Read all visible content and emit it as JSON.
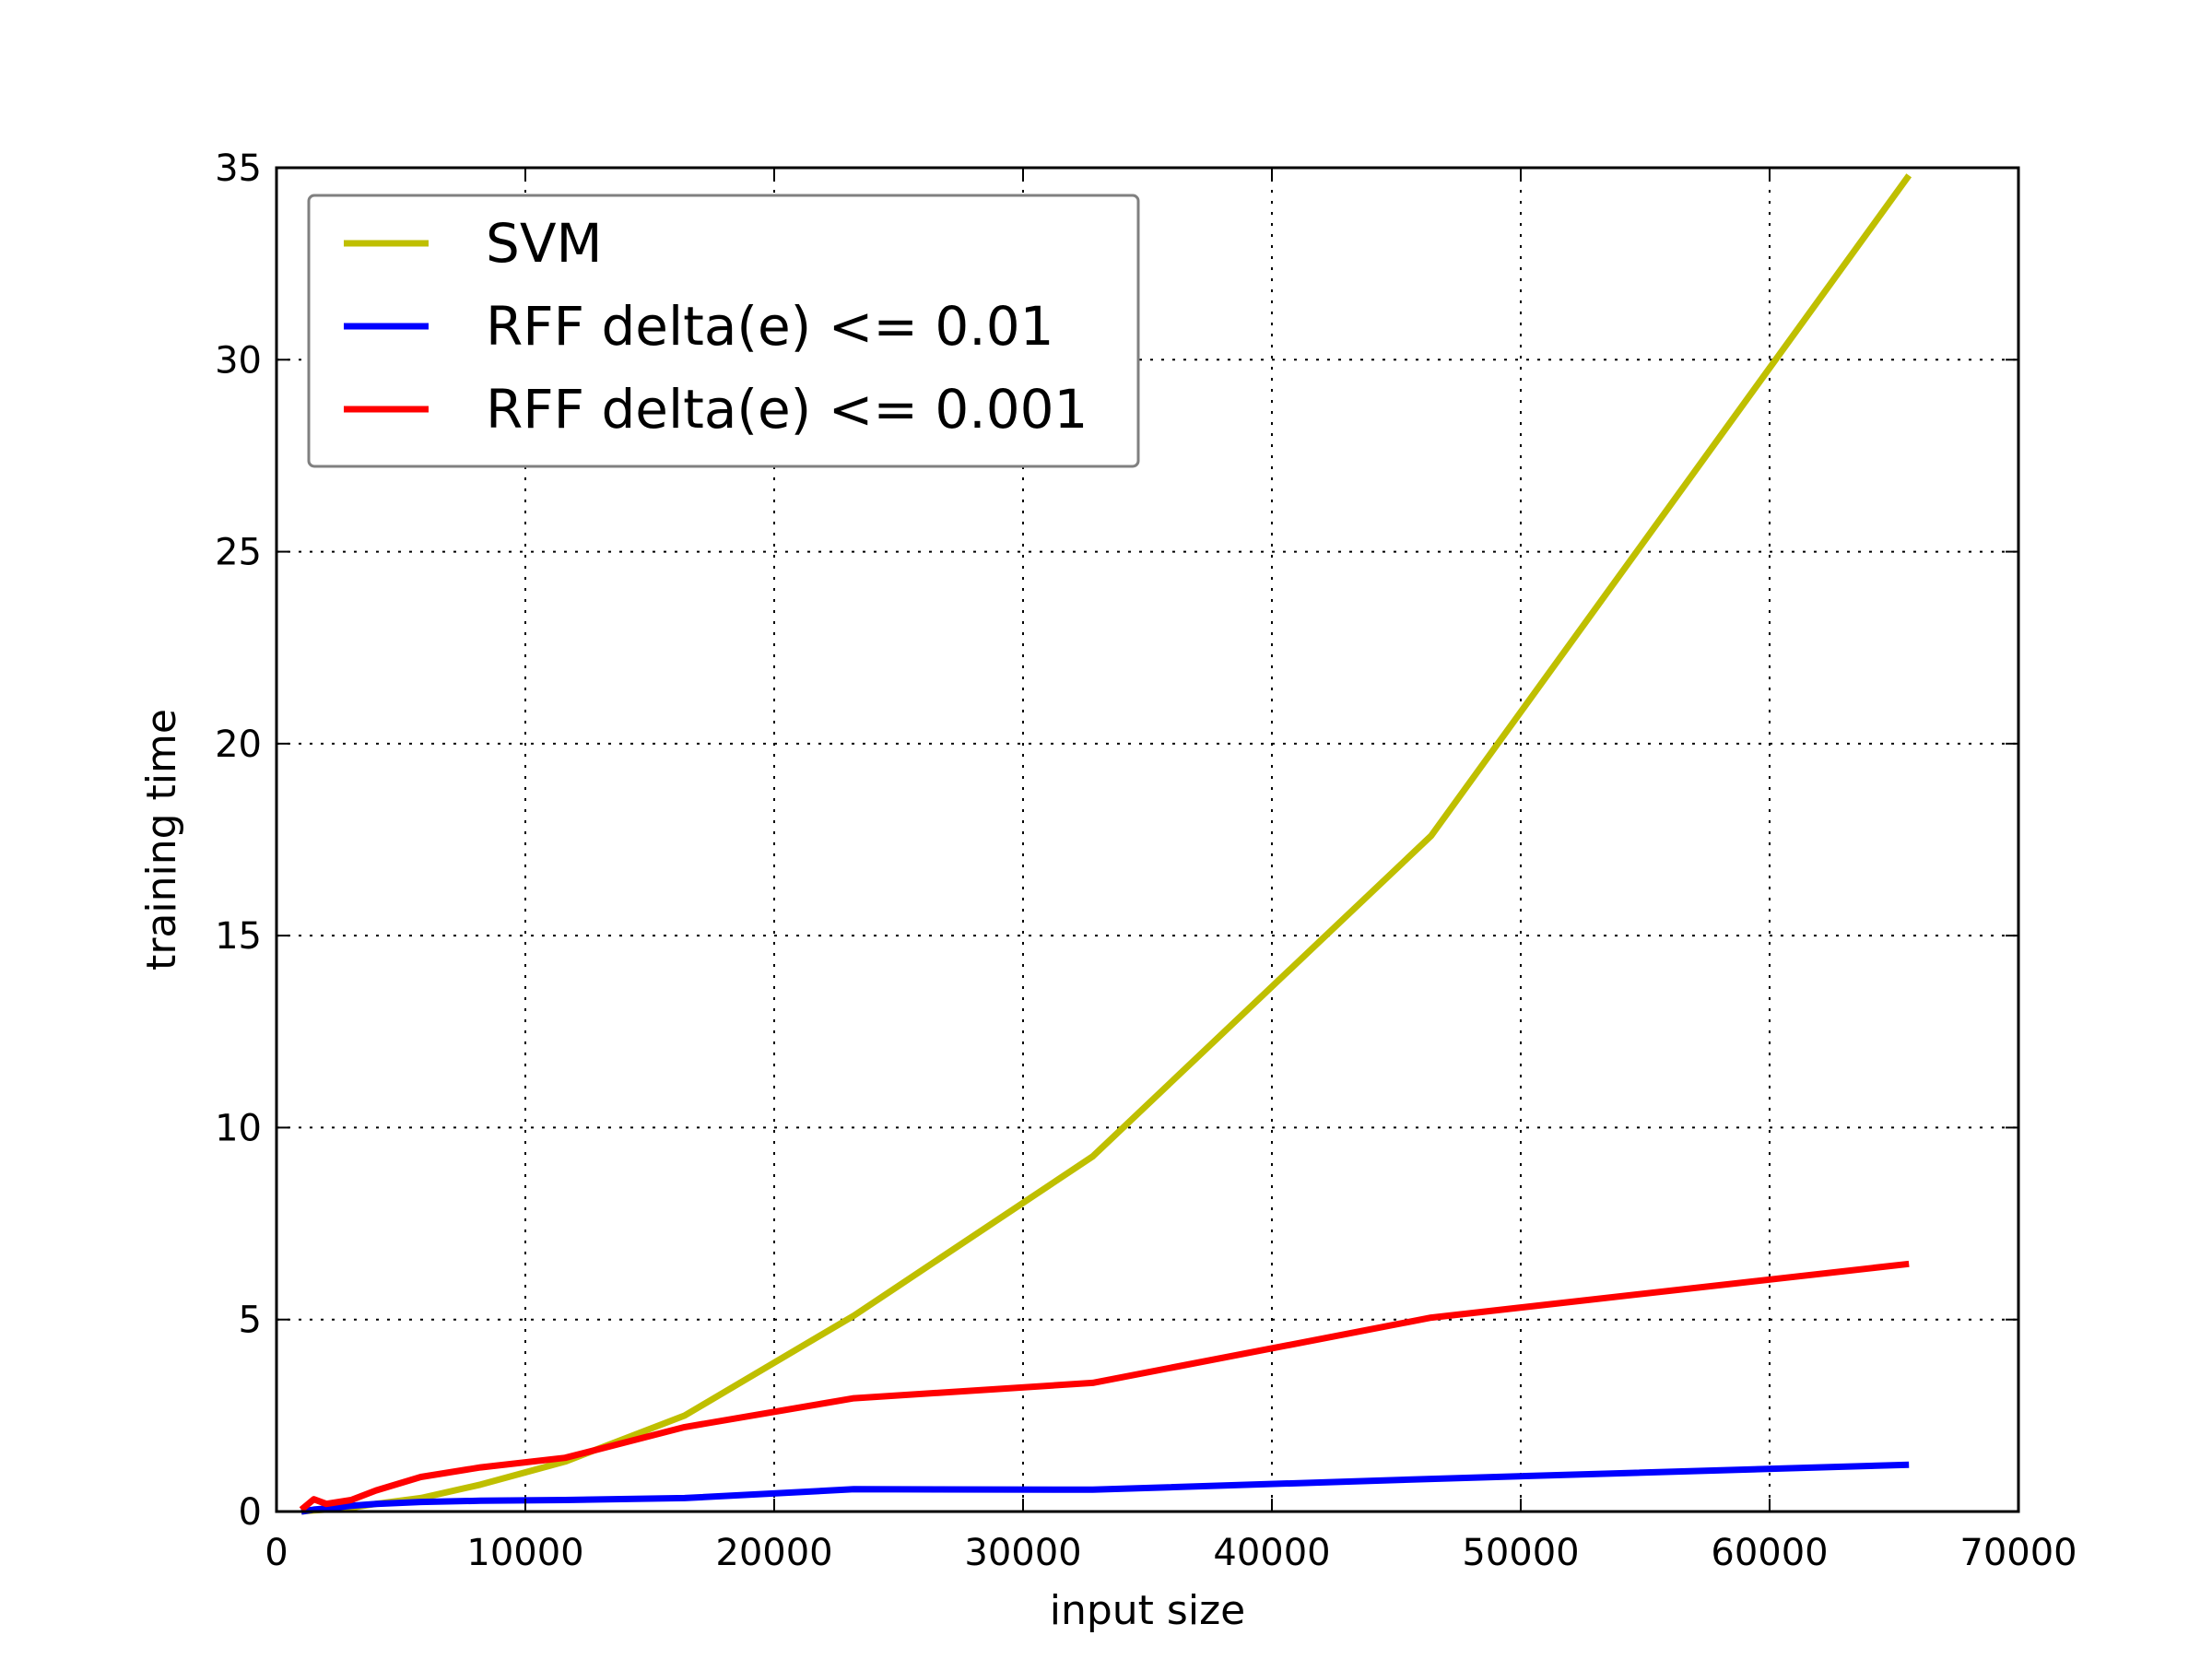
{
  "chart_data": {
    "type": "line",
    "xlabel": "input size",
    "ylabel": "training time",
    "xlim": [
      0,
      70000
    ],
    "ylim": [
      0,
      35
    ],
    "xticks": [
      0,
      10000,
      20000,
      30000,
      40000,
      50000,
      60000,
      70000
    ],
    "yticks": [
      0,
      5,
      10,
      15,
      20,
      25,
      30,
      35
    ],
    "xtick_labels": [
      "0",
      "10000",
      "20000",
      "30000",
      "40000",
      "50000",
      "60000",
      "70000"
    ],
    "ytick_labels": [
      "0",
      "5",
      "10",
      "15",
      "20",
      "25",
      "30",
      "35"
    ],
    "grid": true,
    "legend_position": "upper-left",
    "series": [
      {
        "name": "SVM",
        "color": "#bfbf00",
        "x": [
          1000,
          1500,
          2000,
          3000,
          4000,
          5800,
          8200,
          11600,
          16400,
          23200,
          32800,
          46400,
          65600
        ],
        "y": [
          0.0,
          0.03,
          0.05,
          0.1,
          0.2,
          0.35,
          0.7,
          1.3,
          2.5,
          5.1,
          9.25,
          17.6,
          34.8
        ]
      },
      {
        "name": "RFF delta(e) <= 0.01",
        "color": "#0000ff",
        "x": [
          1000,
          1500,
          2000,
          3000,
          4000,
          5800,
          8200,
          11600,
          16400,
          23200,
          32800,
          46400,
          65600
        ],
        "y": [
          0.0,
          0.05,
          0.08,
          0.15,
          0.2,
          0.25,
          0.28,
          0.3,
          0.35,
          0.58,
          0.57,
          0.85,
          1.22
        ]
      },
      {
        "name": "RFF delta(e) <= 0.001",
        "color": "#ff0000",
        "x": [
          1000,
          1500,
          2000,
          3000,
          4000,
          5800,
          8200,
          11600,
          16400,
          23200,
          32800,
          46400,
          65600
        ],
        "y": [
          0.05,
          0.32,
          0.2,
          0.3,
          0.55,
          0.9,
          1.15,
          1.4,
          2.2,
          2.95,
          3.35,
          5.05,
          6.45
        ]
      }
    ]
  }
}
